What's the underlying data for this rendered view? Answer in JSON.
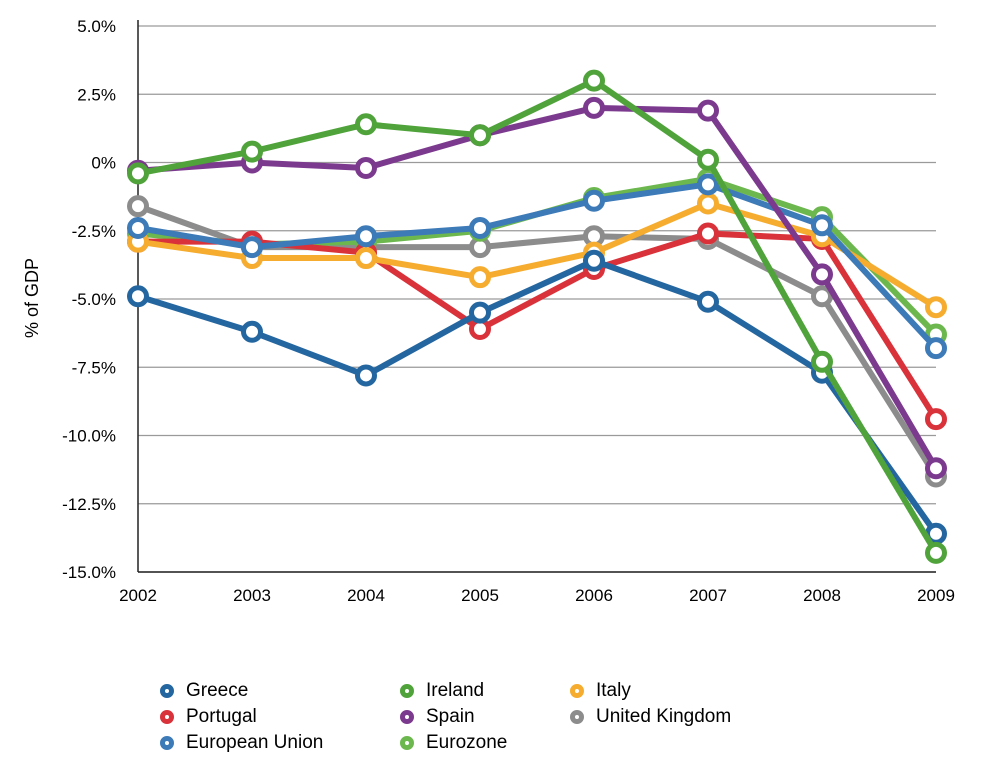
{
  "chart_data": {
    "type": "line",
    "ylabel": "% of GDP",
    "xlabel": "",
    "ylim": [
      -15,
      5
    ],
    "grid": true,
    "x": [
      "2002",
      "2003",
      "2004",
      "2005",
      "2006",
      "2007",
      "2008",
      "2009"
    ],
    "y_ticks": [
      5,
      2.5,
      0,
      -2.5,
      -5,
      -7.5,
      -10,
      -12.5,
      -15
    ],
    "y_tick_labels": [
      "5.0%",
      "2.5%",
      "0%",
      "-2.5%",
      "-5.0%",
      "-7.5%",
      "-10.0%",
      "-12.5%",
      "-15.0%"
    ],
    "series": [
      {
        "name": "United Kingdom",
        "color": "#8c8c8c",
        "values": [
          -1.6,
          -3.1,
          -3.1,
          -3.1,
          -2.7,
          -2.8,
          -4.9,
          -11.5
        ]
      },
      {
        "name": "Eurozone",
        "color": "#6cb84e",
        "values": [
          -2.6,
          -3.0,
          -2.9,
          -2.5,
          -1.3,
          -0.6,
          -2.0,
          -6.3
        ]
      },
      {
        "name": "Portugal",
        "color": "#d9323a",
        "values": [
          -2.9,
          -2.9,
          -3.3,
          -6.1,
          -3.9,
          -2.6,
          -2.8,
          -9.4
        ]
      },
      {
        "name": "Italy",
        "color": "#f5ac2f",
        "values": [
          -2.9,
          -3.5,
          -3.5,
          -4.2,
          -3.3,
          -1.5,
          -2.7,
          -5.3
        ]
      },
      {
        "name": "European Union",
        "color": "#3d7ab8",
        "values": [
          -2.4,
          -3.1,
          -2.7,
          -2.4,
          -1.4,
          -0.8,
          -2.3,
          -6.8
        ]
      },
      {
        "name": "Greece",
        "color": "#2466a0",
        "values": [
          -4.9,
          -6.2,
          -7.8,
          -5.5,
          -3.6,
          -5.1,
          -7.7,
          -13.6
        ]
      },
      {
        "name": "Spain",
        "color": "#7c3a8e",
        "values": [
          -0.3,
          0.0,
          -0.2,
          1.0,
          2.0,
          1.9,
          -4.1,
          -11.2
        ]
      },
      {
        "name": "Ireland",
        "color": "#4fa33a",
        "values": [
          -0.4,
          0.4,
          1.4,
          1.0,
          3.0,
          0.1,
          -7.3,
          -14.3
        ]
      }
    ],
    "legend": {
      "placement": "bottom-left",
      "columns": [
        [
          "Greece",
          "Portugal",
          "European Union"
        ],
        [
          "Ireland",
          "Spain",
          "Eurozone"
        ],
        [
          "Italy",
          "United Kingdom"
        ]
      ]
    }
  }
}
